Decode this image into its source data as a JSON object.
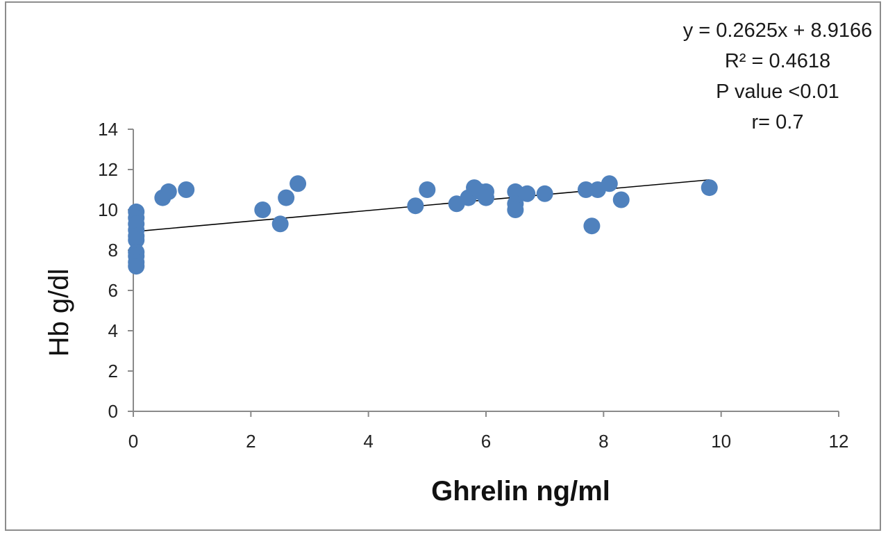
{
  "chart_data": {
    "type": "scatter",
    "title": "",
    "xlabel": "Ghrelin ng/ml",
    "ylabel": "Hb g/dl",
    "xlim": [
      0,
      12
    ],
    "ylim": [
      0,
      14
    ],
    "xticks": [
      "0",
      "2",
      "4",
      "6",
      "8",
      "10",
      "12"
    ],
    "yticks": [
      "0",
      "2",
      "4",
      "6",
      "8",
      "10",
      "12",
      "14"
    ],
    "grid": false,
    "marker_color": "#4f81bd",
    "trendline": {
      "slope": 0.2625,
      "intercept": 8.9166,
      "x_range": [
        0,
        9.8
      ],
      "color": "#000000"
    },
    "annotations": [
      "y = 0.2625x + 8.9166",
      "R² = 0.4618",
      "P value <0.01",
      "r= 0.7"
    ],
    "points": [
      {
        "x": 0.05,
        "y": 9.9
      },
      {
        "x": 0.05,
        "y": 9.6
      },
      {
        "x": 0.05,
        "y": 9.3
      },
      {
        "x": 0.05,
        "y": 9.0
      },
      {
        "x": 0.05,
        "y": 8.7
      },
      {
        "x": 0.05,
        "y": 8.5
      },
      {
        "x": 0.05,
        "y": 7.9
      },
      {
        "x": 0.05,
        "y": 7.7
      },
      {
        "x": 0.05,
        "y": 7.4
      },
      {
        "x": 0.05,
        "y": 7.2
      },
      {
        "x": 0.5,
        "y": 10.6
      },
      {
        "x": 0.6,
        "y": 10.9
      },
      {
        "x": 0.9,
        "y": 11.0
      },
      {
        "x": 2.2,
        "y": 10.0
      },
      {
        "x": 2.5,
        "y": 9.3
      },
      {
        "x": 2.6,
        "y": 10.6
      },
      {
        "x": 2.8,
        "y": 11.3
      },
      {
        "x": 4.8,
        "y": 10.2
      },
      {
        "x": 5.0,
        "y": 11.0
      },
      {
        "x": 5.5,
        "y": 10.3
      },
      {
        "x": 5.7,
        "y": 10.6
      },
      {
        "x": 5.8,
        "y": 11.1
      },
      {
        "x": 5.9,
        "y": 10.9
      },
      {
        "x": 6.0,
        "y": 10.9
      },
      {
        "x": 6.0,
        "y": 10.6
      },
      {
        "x": 6.5,
        "y": 10.9
      },
      {
        "x": 6.5,
        "y": 10.3
      },
      {
        "x": 6.5,
        "y": 10.0
      },
      {
        "x": 6.7,
        "y": 10.8
      },
      {
        "x": 7.0,
        "y": 10.8
      },
      {
        "x": 7.7,
        "y": 11.0
      },
      {
        "x": 7.8,
        "y": 9.2
      },
      {
        "x": 7.9,
        "y": 11.0
      },
      {
        "x": 8.1,
        "y": 11.3
      },
      {
        "x": 8.3,
        "y": 10.5
      },
      {
        "x": 9.8,
        "y": 11.1
      }
    ]
  }
}
